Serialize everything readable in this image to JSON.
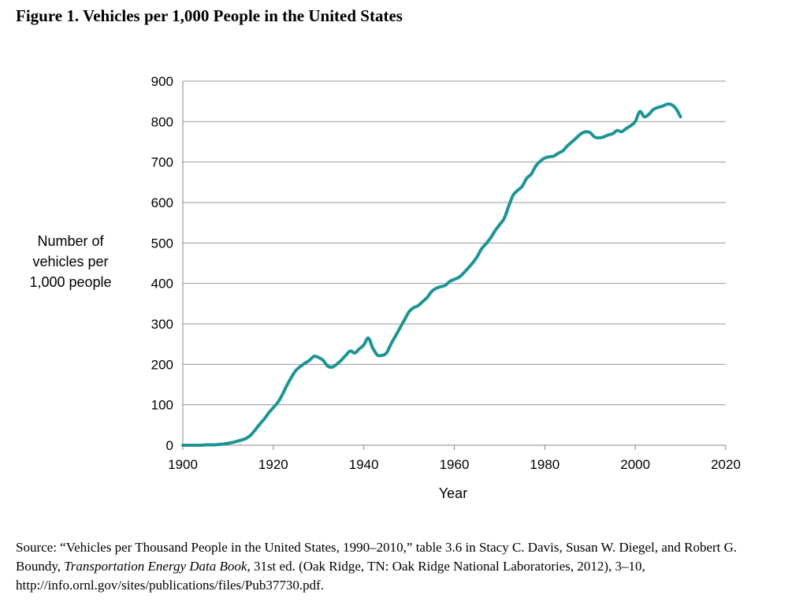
{
  "figure_title": "Figure 1. Vehicles per 1,000 People in the United States",
  "source": {
    "prefix": "Source: “Vehicles per Thousand People in the United States, 1990–2010,” table 3.6 in Stacy C. Davis, Susan W. Diegel, and Robert G. Boundy, ",
    "italic": "Transportation Energy Data Book",
    "suffix": ", 31st ed. (Oak Ridge, TN: Oak Ridge National Laboratories, 2012), 3–10, http://info.ornl.gov/sites/publications/files/Pub37730.pdf."
  },
  "colors": {
    "line": "#1e9494",
    "grid": "#999999",
    "axis": "#888888"
  },
  "chart_data": {
    "type": "line",
    "title": "Figure 1. Vehicles per 1,000 People in the United States",
    "xlabel": "Year",
    "ylabel_lines": [
      "Number of",
      "vehicles per",
      "1,000 people"
    ],
    "xlim": [
      1900,
      2020
    ],
    "ylim": [
      0,
      900
    ],
    "xticks": [
      1900,
      1920,
      1940,
      1960,
      1980,
      2000,
      2020
    ],
    "yticks": [
      0,
      100,
      200,
      300,
      400,
      500,
      600,
      700,
      800,
      900
    ],
    "grid": "horizontal",
    "legend": "none",
    "series": [
      {
        "x": [
          1900,
          1901,
          1902,
          1903,
          1904,
          1905,
          1906,
          1907,
          1908,
          1909,
          1910,
          1911,
          1912,
          1913,
          1914,
          1915,
          1916,
          1917,
          1918,
          1919,
          1920,
          1921,
          1922,
          1923,
          1924,
          1925,
          1926,
          1927,
          1928,
          1929,
          1930,
          1931,
          1932,
          1933,
          1934,
          1935,
          1936,
          1937,
          1938,
          1939,
          1940,
          1941,
          1942,
          1943,
          1944,
          1945,
          1946,
          1947,
          1948,
          1949,
          1950,
          1951,
          1952,
          1953,
          1954,
          1955,
          1956,
          1957,
          1958,
          1959,
          1960,
          1961,
          1962,
          1963,
          1964,
          1965,
          1966,
          1967,
          1968,
          1969,
          1970,
          1971,
          1972,
          1973,
          1974,
          1975,
          1976,
          1977,
          1978,
          1979,
          1980,
          1981,
          1982,
          1983,
          1984,
          1985,
          1986,
          1987,
          1988,
          1989,
          1990,
          1991,
          1992,
          1993,
          1994,
          1995,
          1996,
          1997,
          1998,
          1999,
          2000,
          2001,
          2002,
          2003,
          2004,
          2005,
          2006,
          2007,
          2008,
          2009,
          2010
        ],
        "y": [
          0,
          0,
          0,
          0,
          0,
          1,
          1,
          1,
          2,
          3,
          5,
          7,
          10,
          13,
          17,
          25,
          38,
          52,
          65,
          80,
          93,
          106,
          125,
          148,
          168,
          185,
          195,
          203,
          210,
          220,
          217,
          210,
          196,
          193,
          200,
          210,
          222,
          233,
          228,
          238,
          248,
          265,
          240,
          223,
          222,
          228,
          250,
          270,
          290,
          310,
          330,
          340,
          345,
          355,
          365,
          380,
          388,
          392,
          395,
          405,
          410,
          415,
          425,
          437,
          450,
          465,
          485,
          498,
          512,
          530,
          545,
          560,
          590,
          618,
          630,
          640,
          660,
          670,
          690,
          702,
          710,
          713,
          715,
          722,
          728,
          740,
          750,
          760,
          770,
          775,
          773,
          762,
          760,
          762,
          767,
          770,
          778,
          775,
          783,
          790,
          800,
          825,
          812,
          818,
          830,
          835,
          838,
          843,
          842,
          832,
          812
        ]
      }
    ]
  }
}
